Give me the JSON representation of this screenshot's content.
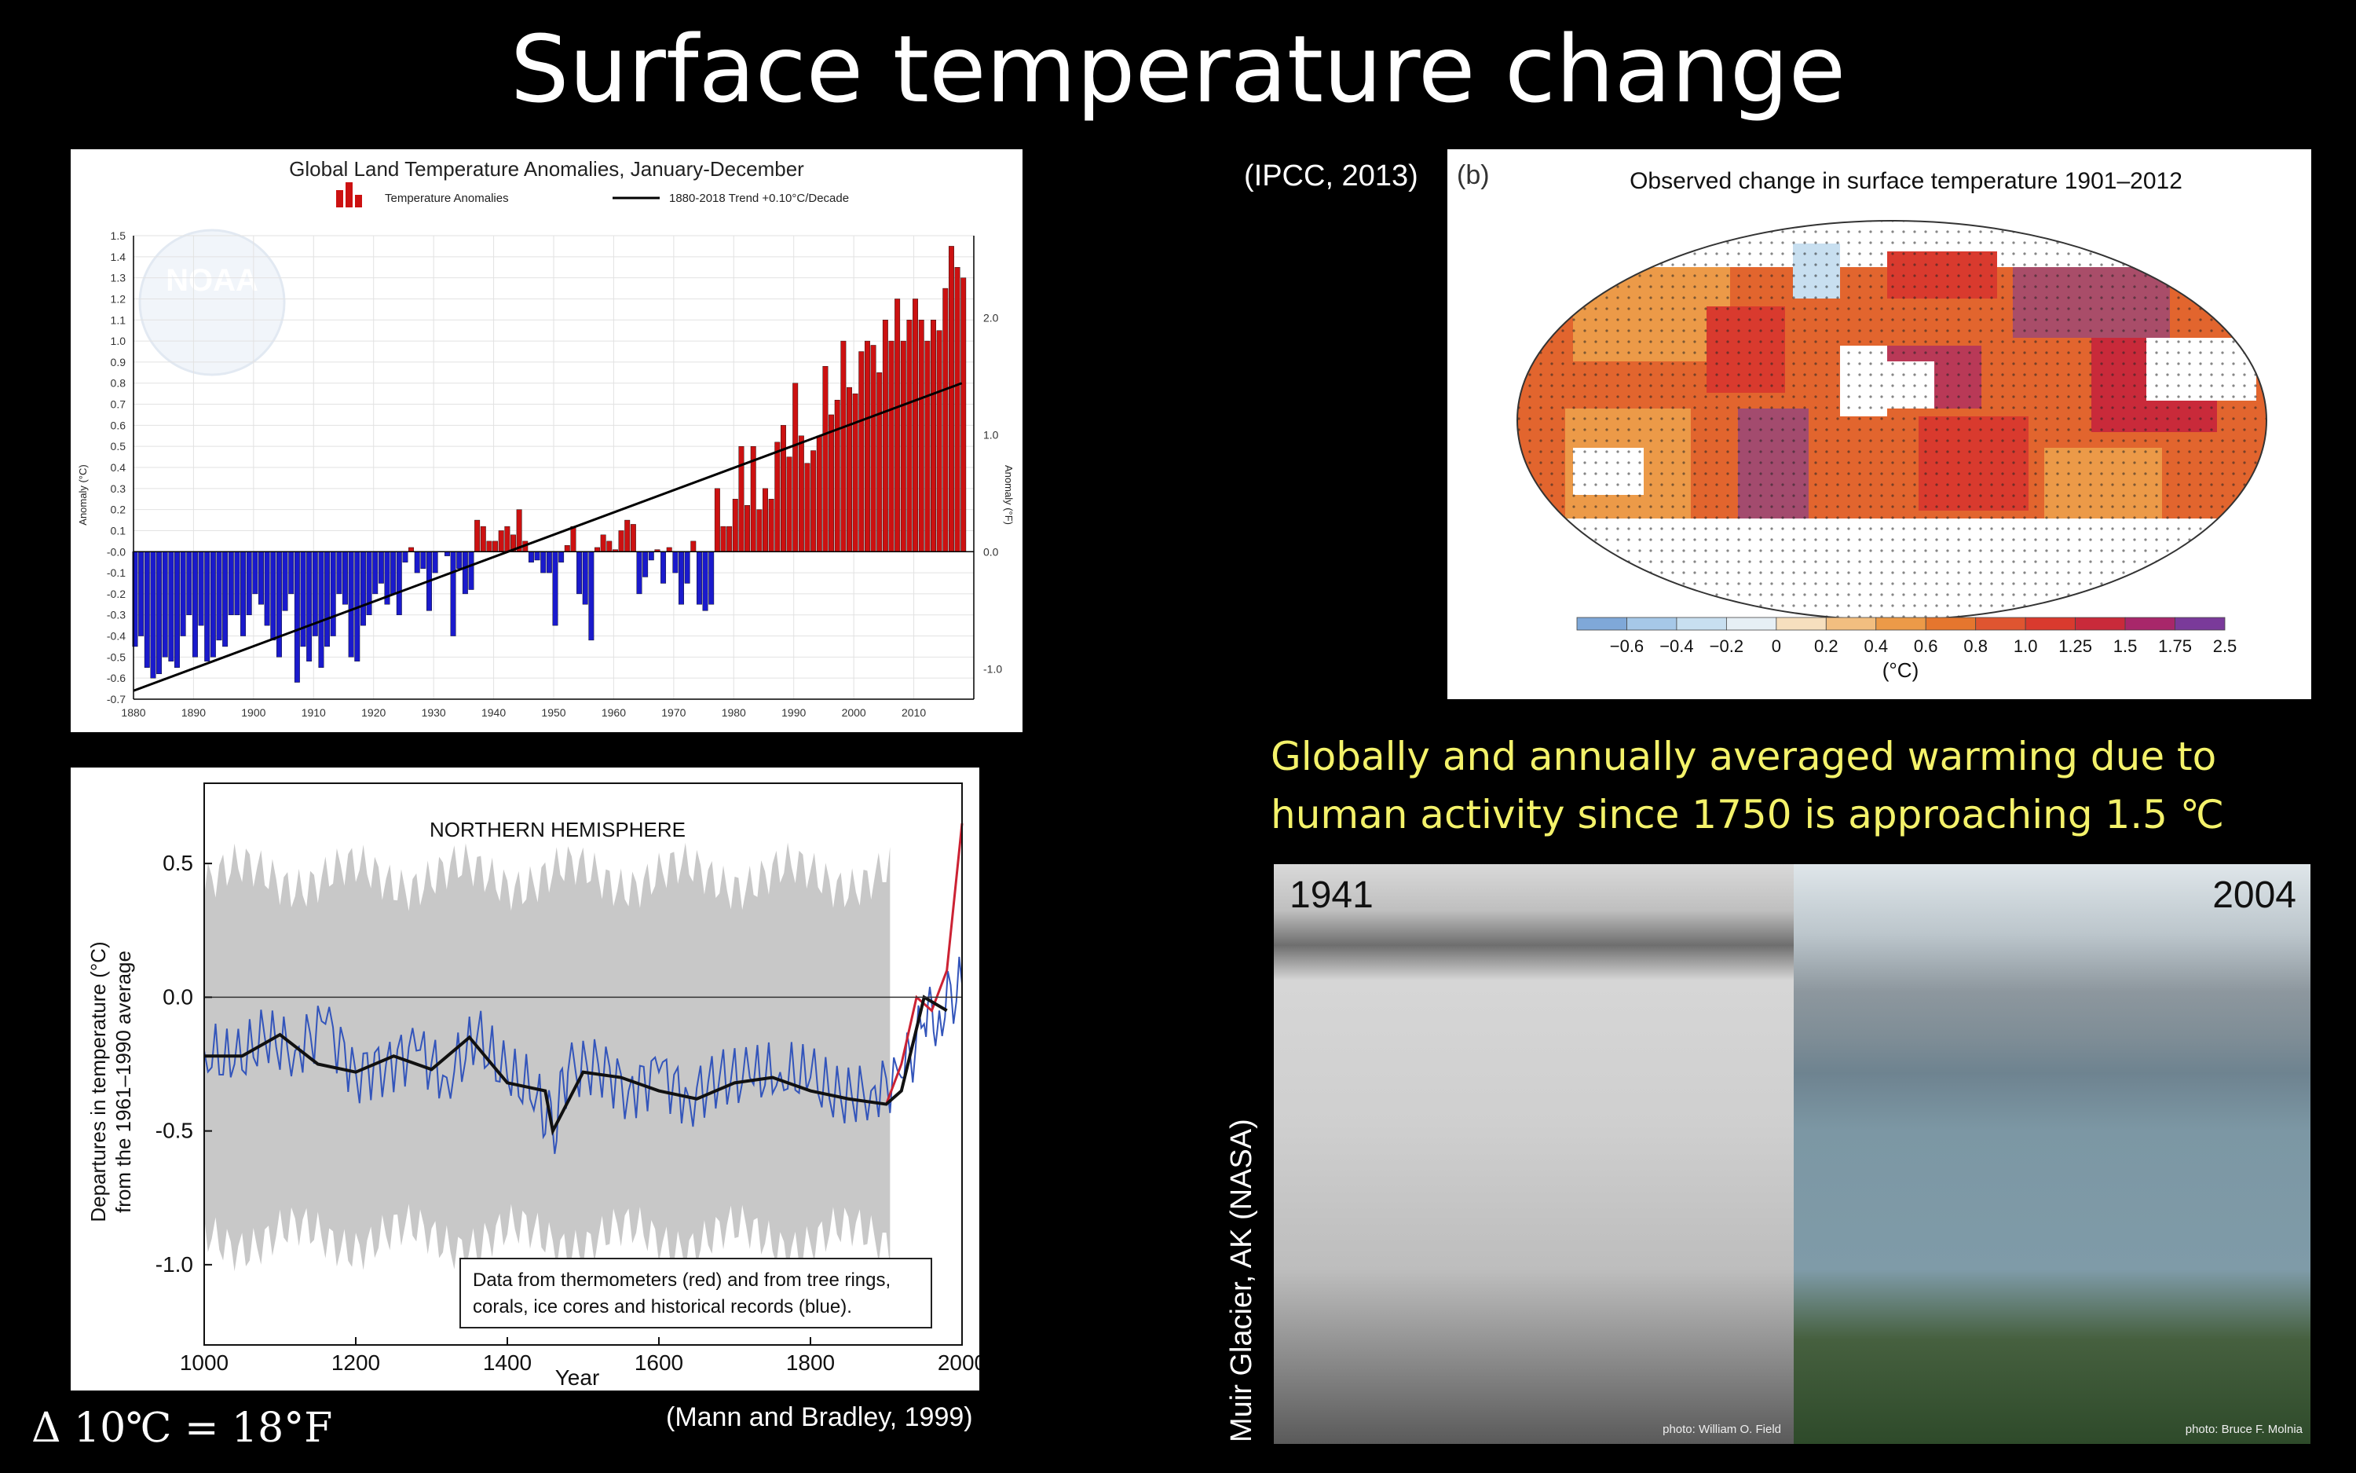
{
  "slide": {
    "title": "Surface temperature change",
    "takeaway_line1": "Globally and annually averaged warming due to",
    "takeaway_line2": "human activity since 1750 is approaching 1.5 ℃",
    "formula": "Δ 10℃ = 18°F",
    "ipcc_citation": "(IPCC, 2013)",
    "mann_citation": "(Mann and Bradley, 1999)",
    "glacier_caption": "Muir Glacier, AK (NASA)"
  },
  "noaa_chart": {
    "title": "Global Land Temperature Anomalies, January-December",
    "legend_bars": "Temperature Anomalies",
    "legend_trend": "1880-2018 Trend +0.10°C/Decade",
    "ylabel_left": "Anomaly (°C)",
    "ylabel_right": "Anomaly (°F)",
    "logo_text": "NOAA",
    "colors": {
      "positive": "#cc1111",
      "negative": "#1a1acc",
      "trend": "#000000"
    }
  },
  "map_panel": {
    "panel_letter": "(b)",
    "title": "Observed change in surface temperature 1901–2012",
    "unit": "(°C)",
    "colorbar_ticks": [
      "−0.6",
      "−0.4",
      "−0.2",
      "0",
      "0.2",
      "0.4",
      "0.6",
      "0.8",
      "1.0",
      "1.25",
      "1.5",
      "1.75",
      "2.5"
    ],
    "colorbar_colors": [
      "#7fa8d8",
      "#a6c8e8",
      "#c8dff0",
      "#e6eff5",
      "#f6dfbe",
      "#f2be80",
      "#ec9a48",
      "#e5762e",
      "#df5530",
      "#d93a2e",
      "#c92a3a",
      "#a8276a",
      "#7a3a9a"
    ]
  },
  "nh_chart": {
    "title": "NORTHERN HEMISPHERE",
    "ylabel_line1": "Departures in temperature (°C)",
    "ylabel_line2": "from the 1961–1990 average",
    "xlabel": "Year",
    "note_line1": "Data from thermometers (red) and from tree rings,",
    "note_line2": "corals, ice cores and historical records (blue).",
    "colors": {
      "proxy": "#3355bb",
      "thermometer": "#cc2233",
      "smooth": "#111111",
      "uncertainty": "#c8c8c8"
    }
  },
  "photos": {
    "left_year": "1941",
    "right_year": "2004",
    "left_credit": "photo: William O. Field",
    "right_credit": "photo: Bruce F. Molnia"
  },
  "chart_data": [
    {
      "type": "bar",
      "title": "Global Land Temperature Anomalies, January-December",
      "x": [
        1880,
        1881,
        1882,
        1883,
        1884,
        1885,
        1886,
        1887,
        1888,
        1889,
        1890,
        1891,
        1892,
        1893,
        1894,
        1895,
        1896,
        1897,
        1898,
        1899,
        1900,
        1901,
        1902,
        1903,
        1904,
        1905,
        1906,
        1907,
        1908,
        1909,
        1910,
        1911,
        1912,
        1913,
        1914,
        1915,
        1916,
        1917,
        1918,
        1919,
        1920,
        1921,
        1922,
        1923,
        1924,
        1925,
        1926,
        1927,
        1928,
        1929,
        1930,
        1931,
        1932,
        1933,
        1934,
        1935,
        1936,
        1937,
        1938,
        1939,
        1940,
        1941,
        1942,
        1943,
        1944,
        1945,
        1946,
        1947,
        1948,
        1949,
        1950,
        1951,
        1952,
        1953,
        1954,
        1955,
        1956,
        1957,
        1958,
        1959,
        1960,
        1961,
        1962,
        1963,
        1964,
        1965,
        1966,
        1967,
        1968,
        1969,
        1970,
        1971,
        1972,
        1973,
        1974,
        1975,
        1976,
        1977,
        1978,
        1979,
        1980,
        1981,
        1982,
        1983,
        1984,
        1985,
        1986,
        1987,
        1988,
        1989,
        1990,
        1991,
        1992,
        1993,
        1994,
        1995,
        1996,
        1997,
        1998,
        1999,
        2000,
        2001,
        2002,
        2003,
        2004,
        2005,
        2006,
        2007,
        2008,
        2009,
        2010,
        2011,
        2012,
        2013,
        2014,
        2015,
        2016,
        2017,
        2018
      ],
      "values": [
        -0.45,
        -0.4,
        -0.55,
        -0.6,
        -0.58,
        -0.5,
        -0.52,
        -0.55,
        -0.4,
        -0.3,
        -0.5,
        -0.35,
        -0.52,
        -0.5,
        -0.42,
        -0.45,
        -0.3,
        -0.3,
        -0.4,
        -0.3,
        -0.2,
        -0.25,
        -0.35,
        -0.42,
        -0.5,
        -0.28,
        -0.2,
        -0.62,
        -0.45,
        -0.52,
        -0.4,
        -0.55,
        -0.45,
        -0.4,
        -0.2,
        -0.25,
        -0.5,
        -0.52,
        -0.35,
        -0.3,
        -0.2,
        -0.15,
        -0.25,
        -0.2,
        -0.3,
        -0.05,
        0.02,
        -0.1,
        -0.08,
        -0.28,
        -0.1,
        0.0,
        -0.02,
        -0.4,
        -0.08,
        -0.2,
        -0.18,
        0.15,
        0.12,
        0.05,
        0.05,
        0.1,
        0.12,
        0.08,
        0.2,
        0.05,
        -0.05,
        -0.04,
        -0.1,
        -0.1,
        -0.35,
        -0.05,
        0.03,
        0.12,
        -0.2,
        -0.25,
        -0.42,
        0.02,
        0.08,
        0.05,
        0.01,
        0.1,
        0.15,
        0.13,
        -0.2,
        -0.12,
        -0.04,
        0.01,
        -0.15,
        0.02,
        -0.1,
        -0.25,
        -0.15,
        0.05,
        -0.25,
        -0.28,
        -0.25,
        0.3,
        0.12,
        0.12,
        0.25,
        0.5,
        0.22,
        0.5,
        0.2,
        0.3,
        0.25,
        0.52,
        0.6,
        0.45,
        0.8,
        0.55,
        0.42,
        0.48,
        0.55,
        0.88,
        0.65,
        0.72,
        1.0,
        0.78,
        0.75,
        0.95,
        1.0,
        0.98,
        0.85,
        1.1,
        1.0,
        1.2,
        1.0,
        1.1,
        1.2,
        1.1,
        1.0,
        1.1,
        1.05,
        1.25,
        1.45,
        1.35,
        1.3
      ],
      "trend": {
        "label": "1880-2018 Trend +0.10°C/Decade",
        "from": [
          1880,
          -0.66
        ],
        "to": [
          2018,
          0.8
        ]
      },
      "xlim": [
        1880,
        2020
      ],
      "ylim": [
        -0.7,
        1.5
      ],
      "xticks": [
        1880,
        1890,
        1900,
        1910,
        1920,
        1930,
        1940,
        1950,
        1960,
        1970,
        1980,
        1990,
        2000,
        2010
      ],
      "yticks": [
        "1.5",
        "1.4",
        "1.3",
        "1.2",
        "1.1",
        "1.0",
        "0.9",
        "0.8",
        "0.7",
        "0.6",
        "0.5",
        "0.4",
        "0.3",
        "0.2",
        "0.1",
        "-0.0",
        "-0.1",
        "-0.2",
        "-0.3",
        "-0.4",
        "-0.5",
        "-0.6",
        "-0.7"
      ],
      "yticks_right": [
        "2.0",
        "1.0",
        "0.0",
        "-1.0"
      ],
      "ylabel": "Anomaly (°C)",
      "ylabel_right": "Anomaly (°F)",
      "legend": "top"
    },
    {
      "type": "line",
      "title": "NORTHERN HEMISPHERE",
      "xlabel": "Year",
      "ylabel": "Departures in temperature (°C) from the 1961–1990 average",
      "xlim": [
        1000,
        2000
      ],
      "ylim": [
        -1.3,
        0.8
      ],
      "xticks": [
        1000,
        1200,
        1400,
        1600,
        1800,
        2000
      ],
      "yticks": [
        0.5,
        0.0,
        -0.5,
        -1.0
      ],
      "series": [
        {
          "x": [
            1000,
            1040,
            1080,
            1120,
            1160,
            1200,
            1240,
            1280,
            1320,
            1360,
            1400,
            1440,
            1460,
            1480,
            1520,
            1560,
            1600,
            1640,
            1680,
            1720,
            1760,
            1800,
            1840,
            1880,
            1920,
            1950,
            1970,
            2000
          ],
          "values": [
            -0.2,
            -0.25,
            -0.15,
            -0.2,
            -0.1,
            -0.28,
            -0.25,
            -0.2,
            -0.3,
            -0.15,
            -0.3,
            -0.35,
            -0.5,
            -0.28,
            -0.25,
            -0.35,
            -0.28,
            -0.38,
            -0.3,
            -0.3,
            -0.28,
            -0.3,
            -0.38,
            -0.35,
            -0.3,
            -0.1,
            -0.05,
            0.05
          ]
        },
        {
          "x": [
            1900,
            1920,
            1940,
            1960,
            1980,
            2000
          ],
          "values": [
            -0.4,
            -0.25,
            0.0,
            -0.05,
            0.1,
            0.65
          ]
        }
      ],
      "smooth": {
        "x": [
          1000,
          1050,
          1100,
          1150,
          1200,
          1250,
          1300,
          1350,
          1400,
          1450,
          1460,
          1500,
          1550,
          1600,
          1650,
          1700,
          1750,
          1800,
          1850,
          1900,
          1920,
          1950,
          1980
        ],
        "values": [
          -0.22,
          -0.22,
          -0.14,
          -0.25,
          -0.28,
          -0.22,
          -0.27,
          -0.15,
          -0.32,
          -0.35,
          -0.5,
          -0.28,
          -0.3,
          -0.35,
          -0.38,
          -0.32,
          -0.3,
          -0.35,
          -0.38,
          -0.4,
          -0.35,
          0.0,
          -0.05
        ]
      },
      "uncertainty": {
        "lower": -0.9,
        "upper": 0.45
      },
      "grid": false,
      "legend": "none"
    }
  ]
}
